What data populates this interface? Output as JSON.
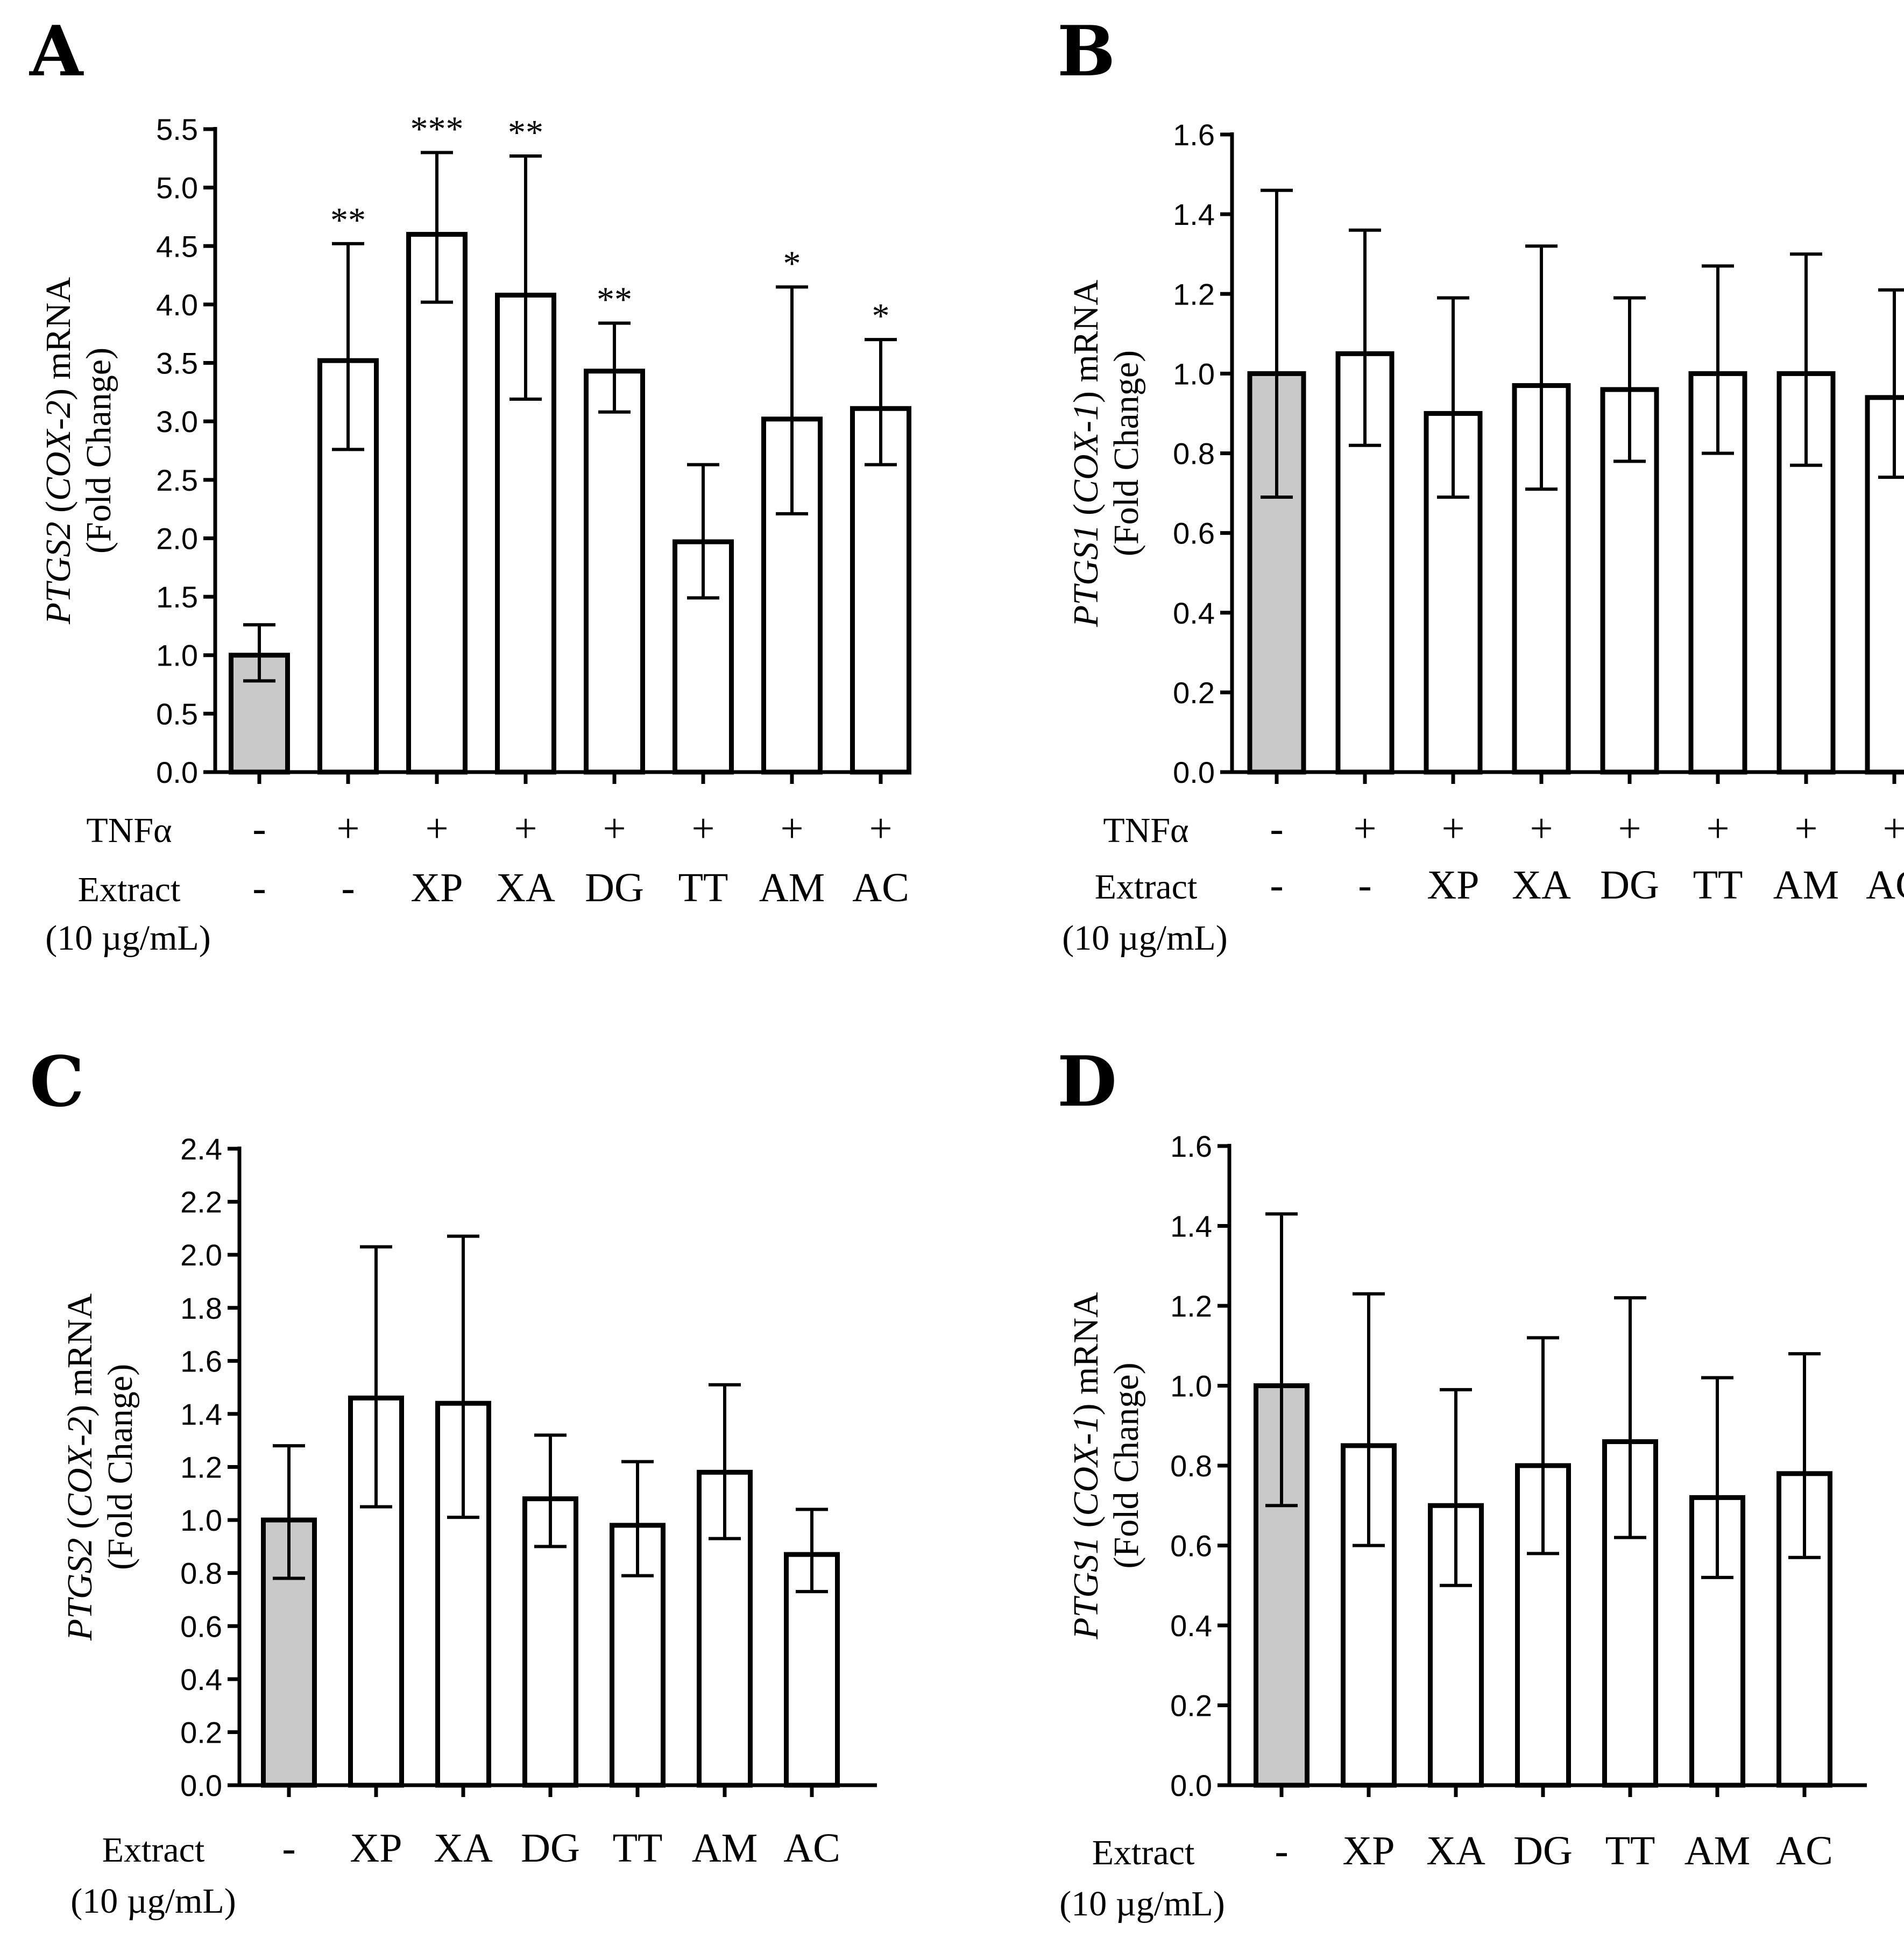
{
  "colors": {
    "control_fill": "#c9c9c9",
    "treated_fill": "#ffffff",
    "stroke": "#000000"
  },
  "chart_data": [
    {
      "id": "A",
      "type": "bar",
      "panel_label": "A",
      "ylabel": {
        "gene": "PTGS2",
        "alias": "COX-2",
        "unit": "mRNA",
        "sub": "(Fold Change)"
      },
      "ylim": [
        0,
        5.5
      ],
      "yticks": [
        "0.0",
        "0.5",
        "1.0",
        "1.5",
        "2.0",
        "2.5",
        "3.0",
        "3.5",
        "4.0",
        "4.5",
        "5.0",
        "5.5"
      ],
      "rows": [
        {
          "label": "TNFα",
          "values": [
            "-",
            "+",
            "+",
            "+",
            "+",
            "+",
            "+",
            "+"
          ]
        },
        {
          "label": "Extract",
          "label2": "(10 µg/mL)",
          "values": [
            "-",
            "-",
            "XP",
            "XA",
            "DG",
            "TT",
            "AM",
            "AC"
          ]
        }
      ],
      "values": [
        1.0,
        3.52,
        4.6,
        4.08,
        3.43,
        1.97,
        3.02,
        3.11
      ],
      "err_low": [
        0.78,
        2.76,
        4.02,
        3.19,
        3.08,
        1.49,
        2.21,
        2.63
      ],
      "err_high": [
        1.26,
        4.52,
        5.3,
        5.27,
        3.84,
        2.63,
        4.15,
        3.7
      ],
      "significance": [
        "",
        "**",
        "***",
        "**",
        "**",
        "",
        "*",
        "*"
      ]
    },
    {
      "id": "B",
      "type": "bar",
      "panel_label": "B",
      "ylabel": {
        "gene": "PTGS1",
        "alias": "COX-1",
        "unit": "mRNA",
        "sub": "(Fold Change)"
      },
      "ylim": [
        0,
        1.6
      ],
      "yticks": [
        "0.0",
        "0.2",
        "0.4",
        "0.6",
        "0.8",
        "1.0",
        "1.2",
        "1.4",
        "1.6"
      ],
      "rows": [
        {
          "label": "TNFα",
          "values": [
            "-",
            "+",
            "+",
            "+",
            "+",
            "+",
            "+",
            "+"
          ]
        },
        {
          "label": "Extract",
          "label2": "(10 µg/mL)",
          "values": [
            "-",
            "-",
            "XP",
            "XA",
            "DG",
            "TT",
            "AM",
            "AC"
          ]
        }
      ],
      "values": [
        1.0,
        1.05,
        0.9,
        0.97,
        0.96,
        1.0,
        1.0,
        0.94
      ],
      "err_low": [
        0.69,
        0.82,
        0.69,
        0.71,
        0.78,
        0.8,
        0.77,
        0.74
      ],
      "err_high": [
        1.46,
        1.36,
        1.19,
        1.32,
        1.19,
        1.27,
        1.3,
        1.21
      ],
      "significance": [
        "",
        "",
        "",
        "",
        "",
        "",
        "",
        ""
      ]
    },
    {
      "id": "C",
      "type": "bar",
      "panel_label": "C",
      "ylabel": {
        "gene": "PTGS2",
        "alias": "COX-2",
        "unit": "mRNA",
        "sub": "(Fold Change)"
      },
      "ylim": [
        0,
        2.4
      ],
      "yticks": [
        "0.0",
        "0.2",
        "0.4",
        "0.6",
        "0.8",
        "1.0",
        "1.2",
        "1.4",
        "1.6",
        "1.8",
        "2.0",
        "2.2",
        "2.4"
      ],
      "rows": [
        {
          "label": "Extract",
          "label2": "(10 µg/mL)",
          "values": [
            "-",
            "XP",
            "XA",
            "DG",
            "TT",
            "AM",
            "AC"
          ]
        }
      ],
      "values": [
        1.0,
        1.46,
        1.44,
        1.08,
        0.98,
        1.18,
        0.87
      ],
      "err_low": [
        0.78,
        1.05,
        1.01,
        0.9,
        0.79,
        0.93,
        0.73
      ],
      "err_high": [
        1.28,
        2.03,
        2.07,
        1.32,
        1.22,
        1.51,
        1.04
      ],
      "significance": [
        "",
        "",
        "",
        "",
        "",
        "",
        ""
      ]
    },
    {
      "id": "D",
      "type": "bar",
      "panel_label": "D",
      "ylabel": {
        "gene": "PTGS1",
        "alias": "COX-1",
        "unit": "mRNA",
        "sub": "(Fold Change)"
      },
      "ylim": [
        0,
        1.6
      ],
      "yticks": [
        "0.0",
        "0.2",
        "0.4",
        "0.6",
        "0.8",
        "1.0",
        "1.2",
        "1.4",
        "1.6"
      ],
      "rows": [
        {
          "label": "Extract",
          "label2": "(10 µg/mL)",
          "values": [
            "-",
            "XP",
            "XA",
            "DG",
            "TT",
            "AM",
            "AC"
          ]
        }
      ],
      "values": [
        1.0,
        0.85,
        0.7,
        0.8,
        0.86,
        0.72,
        0.78
      ],
      "err_low": [
        0.7,
        0.6,
        0.5,
        0.58,
        0.62,
        0.52,
        0.57
      ],
      "err_high": [
        1.43,
        1.23,
        0.99,
        1.12,
        1.22,
        1.02,
        1.08
      ],
      "significance": [
        "",
        "",
        "",
        "",
        "",
        "",
        ""
      ]
    }
  ]
}
